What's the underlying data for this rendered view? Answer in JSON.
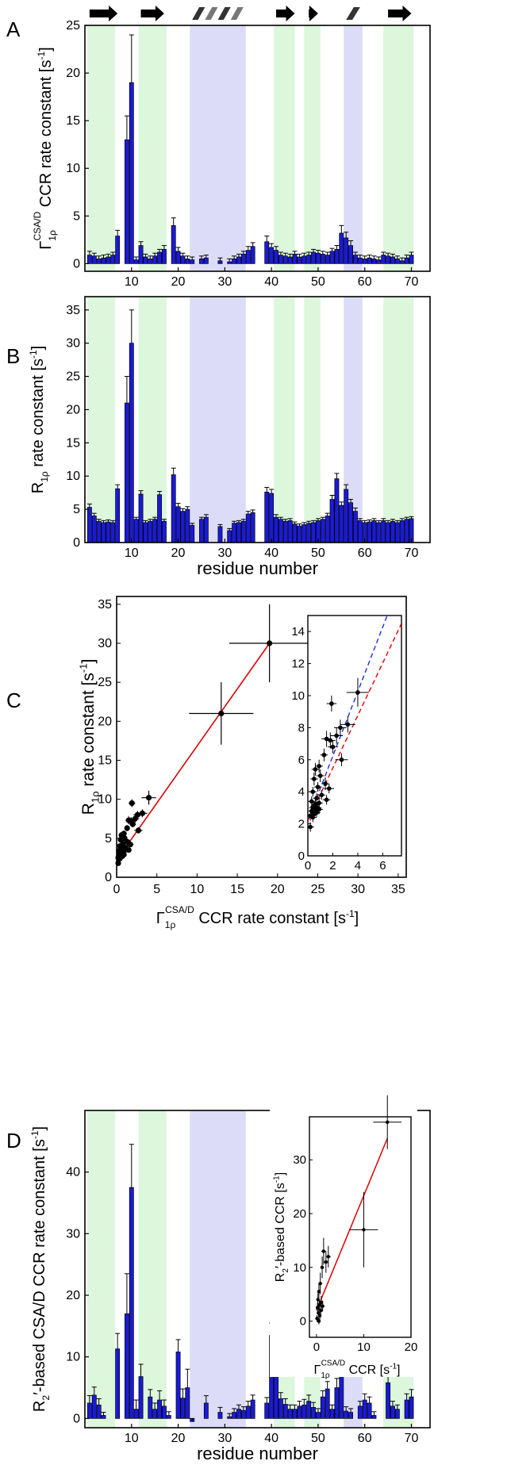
{
  "panel_letters": [
    "A",
    "B",
    "C",
    "D"
  ],
  "secondary_structure": [
    {
      "type": "strand",
      "start": 1,
      "end": 7
    },
    {
      "type": "strand",
      "start": 12,
      "end": 17
    },
    {
      "type": "helix",
      "start": 23,
      "end": 34
    },
    {
      "type": "strand",
      "start": 41,
      "end": 45
    },
    {
      "type": "strand",
      "start": 48,
      "end": 50
    },
    {
      "type": "helix",
      "start": 56,
      "end": 59
    },
    {
      "type": "strand",
      "start": 65,
      "end": 70
    }
  ],
  "shading": {
    "strand_color": "#dcf7dc",
    "helix_color": "#dcdcf8",
    "regions": [
      {
        "type": "strand",
        "start": 0.5,
        "end": 6.5
      },
      {
        "type": "strand",
        "start": 11.5,
        "end": 17.5
      },
      {
        "type": "helix",
        "start": 22.5,
        "end": 34.5
      },
      {
        "type": "strand",
        "start": 40.5,
        "end": 45
      },
      {
        "type": "strand",
        "start": 47,
        "end": 50.5
      },
      {
        "type": "helix",
        "start": 55.5,
        "end": 59.5
      },
      {
        "type": "strand",
        "start": 64,
        "end": 70.5
      }
    ]
  },
  "colors": {
    "bar": "#1a1ad6",
    "fit_line": "#e00000",
    "blue_dashed": "#1a2fd6",
    "red_dashed": "#e00000"
  },
  "chart_data": [
    {
      "panel": "A",
      "type": "bar",
      "ylabel_parts": {
        "base": "Γ",
        "sub": "1ρ",
        "sup": "CSA/D",
        "rest": " CCR rate constant [s",
        "unit_sup": "-1",
        "close": "]"
      },
      "xlim": [
        0,
        74
      ],
      "ylim": [
        -0.8,
        25
      ],
      "xticks": [
        10,
        20,
        30,
        40,
        50,
        60,
        70
      ],
      "yticks": [
        0,
        5,
        10,
        15,
        20,
        25
      ],
      "x": [
        1,
        2,
        3,
        4,
        5,
        6,
        7,
        9,
        10,
        11,
        12,
        13,
        14,
        15,
        16,
        17,
        19,
        20,
        21,
        22,
        23,
        25,
        26,
        29,
        31,
        32,
        33,
        34,
        35,
        36,
        39,
        40,
        41,
        42,
        43,
        44,
        45,
        46,
        47,
        48,
        49,
        50,
        51,
        52,
        53,
        54,
        55,
        56,
        57,
        58,
        59,
        60,
        61,
        62,
        63,
        64,
        65,
        66,
        67,
        68,
        69,
        70
      ],
      "values": [
        0.9,
        0.8,
        0.5,
        0.6,
        0.7,
        0.9,
        2.9,
        13,
        19,
        0.4,
        1.9,
        0.7,
        0.5,
        0.8,
        1.2,
        1.5,
        4.0,
        1.3,
        0.8,
        0.5,
        0.4,
        0.5,
        0.6,
        0.3,
        0.2,
        0.5,
        0.7,
        1.0,
        1.4,
        1.8,
        2.3,
        1.7,
        1.4,
        0.9,
        0.8,
        0.7,
        1.0,
        0.7,
        0.8,
        0.9,
        1.2,
        1.1,
        1.0,
        0.9,
        1.3,
        1.5,
        3.2,
        2.7,
        1.9,
        0.9,
        0.6,
        0.5,
        0.6,
        0.5,
        0.4,
        0.9,
        0.8,
        0.7,
        0.5,
        0.3,
        0.6,
        0.9
      ],
      "errors": [
        0.4,
        0.3,
        0.3,
        0.3,
        0.3,
        0.3,
        0.6,
        2.5,
        5,
        0.3,
        0.4,
        0.3,
        0.3,
        0.3,
        0.3,
        0.4,
        0.8,
        0.4,
        0.3,
        0.3,
        0.3,
        0.3,
        0.3,
        0.3,
        0.3,
        0.3,
        0.3,
        0.3,
        0.4,
        0.4,
        0.6,
        0.4,
        0.4,
        0.3,
        0.3,
        0.3,
        0.3,
        0.3,
        0.3,
        0.3,
        0.3,
        0.3,
        0.3,
        0.3,
        0.3,
        0.4,
        0.8,
        0.6,
        0.5,
        0.3,
        0.3,
        0.3,
        0.3,
        0.3,
        0.3,
        0.3,
        0.3,
        0.3,
        0.3,
        0.3,
        0.3,
        0.3
      ]
    },
    {
      "panel": "B",
      "type": "bar",
      "ylabel_parts": {
        "base": "R",
        "sub": "1ρ",
        "rest": " rate constant [s",
        "unit_sup": "-1",
        "close": "]"
      },
      "xlabel": "residue number",
      "xlim": [
        0,
        74
      ],
      "ylim": [
        0,
        37
      ],
      "xticks": [
        10,
        20,
        30,
        40,
        50,
        60,
        70
      ],
      "yticks": [
        0,
        5,
        10,
        15,
        20,
        25,
        30,
        35
      ],
      "x": [
        1,
        2,
        3,
        4,
        5,
        6,
        7,
        9,
        10,
        11,
        12,
        13,
        14,
        15,
        16,
        17,
        19,
        20,
        21,
        22,
        23,
        25,
        26,
        29,
        31,
        32,
        33,
        34,
        35,
        36,
        39,
        40,
        41,
        42,
        43,
        44,
        45,
        46,
        47,
        48,
        49,
        50,
        51,
        52,
        53,
        54,
        55,
        56,
        57,
        58,
        59,
        60,
        61,
        62,
        63,
        64,
        65,
        66,
        67,
        68,
        69,
        70
      ],
      "values": [
        5.3,
        4.0,
        3.2,
        3.0,
        3.1,
        3.0,
        8.1,
        21,
        30,
        3.5,
        7.3,
        3.0,
        3.2,
        3.5,
        7.2,
        3.2,
        10.2,
        5.4,
        4.7,
        5.0,
        2.6,
        3.5,
        3.8,
        2.4,
        1.8,
        2.9,
        3.0,
        3.2,
        4.3,
        4.5,
        7.6,
        7.4,
        3.8,
        3.5,
        3.2,
        3.3,
        2.8,
        2.5,
        2.7,
        2.9,
        3.0,
        3.3,
        3.5,
        4.0,
        6.5,
        9.6,
        5.6,
        8.0,
        6.0,
        4.7,
        3.3,
        3.0,
        3.1,
        3.3,
        3.0,
        3.3,
        3.0,
        3.2,
        3.0,
        3.3,
        3.5,
        3.6
      ],
      "errors": [
        0.5,
        0.4,
        0.3,
        0.3,
        0.3,
        0.3,
        0.6,
        4,
        5,
        0.3,
        0.5,
        0.3,
        0.3,
        0.3,
        0.5,
        0.3,
        1.0,
        0.5,
        0.4,
        0.4,
        0.3,
        0.3,
        0.4,
        0.3,
        0.3,
        0.3,
        0.3,
        0.3,
        0.4,
        0.4,
        0.7,
        0.6,
        0.4,
        0.3,
        0.3,
        0.3,
        0.3,
        0.3,
        0.3,
        0.3,
        0.3,
        0.3,
        0.3,
        0.4,
        0.6,
        0.8,
        0.5,
        0.7,
        0.5,
        0.5,
        0.3,
        0.3,
        0.3,
        0.3,
        0.3,
        0.3,
        0.3,
        0.3,
        0.3,
        0.3,
        0.3,
        0.3
      ]
    },
    {
      "panel": "C",
      "type": "scatter",
      "xlabel_parts": {
        "base": "Γ",
        "sub": "1ρ",
        "sup": "CSA/D",
        "rest": " CCR rate constant [s",
        "unit_sup": "-1",
        "close": "]"
      },
      "ylabel_parts": {
        "base": "R",
        "sub": "1ρ",
        "rest": " rate constant [s",
        "unit_sup": "-1",
        "close": "]"
      },
      "xlim": [
        0,
        36
      ],
      "ylim": [
        0,
        36
      ],
      "xticks": [
        0,
        5,
        10,
        15,
        20,
        25,
        30,
        35
      ],
      "yticks": [
        0,
        5,
        10,
        15,
        20,
        25,
        30,
        35
      ],
      "fit_line": {
        "x": [
          0,
          19
        ],
        "y": [
          2.2,
          30
        ]
      },
      "points": [
        {
          "x": 19,
          "y": 30,
          "xerr": 5,
          "yerr": 5
        },
        {
          "x": 13,
          "y": 21,
          "xerr": 4,
          "yerr": 4
        },
        {
          "x": 4.0,
          "y": 10.2,
          "xerr": 0.9,
          "yerr": 0.9
        },
        {
          "x": 1.9,
          "y": 9.5,
          "xerr": 0.4,
          "yerr": 0.5
        },
        {
          "x": 3.2,
          "y": 8.2,
          "xerr": 0.6,
          "yerr": 0.5
        },
        {
          "x": 2.6,
          "y": 8.0,
          "xerr": 0.5,
          "yerr": 0.5
        },
        {
          "x": 2.3,
          "y": 7.5,
          "xerr": 0.5,
          "yerr": 0.5
        },
        {
          "x": 1.8,
          "y": 7.2,
          "xerr": 0.4,
          "yerr": 0.5
        },
        {
          "x": 1.5,
          "y": 7.3,
          "xerr": 0.4,
          "yerr": 0.5
        },
        {
          "x": 2.0,
          "y": 6.8,
          "xerr": 0.4,
          "yerr": 0.4
        },
        {
          "x": 1.3,
          "y": 6.3,
          "xerr": 0.3,
          "yerr": 0.4
        },
        {
          "x": 2.7,
          "y": 6.0,
          "xerr": 0.5,
          "yerr": 0.4
        },
        {
          "x": 0.9,
          "y": 5.6,
          "xerr": 0.3,
          "yerr": 0.4
        },
        {
          "x": 0.6,
          "y": 5.4,
          "xerr": 0.3,
          "yerr": 0.4
        },
        {
          "x": 1.0,
          "y": 5.0,
          "xerr": 0.3,
          "yerr": 0.4
        },
        {
          "x": 0.5,
          "y": 4.8,
          "xerr": 0.3,
          "yerr": 0.4
        },
        {
          "x": 1.4,
          "y": 4.5,
          "xerr": 0.3,
          "yerr": 0.4
        },
        {
          "x": 0.8,
          "y": 4.3,
          "xerr": 0.3,
          "yerr": 0.3
        },
        {
          "x": 1.7,
          "y": 4.2,
          "xerr": 0.4,
          "yerr": 0.3
        },
        {
          "x": 0.4,
          "y": 4.0,
          "xerr": 0.3,
          "yerr": 0.3
        },
        {
          "x": 1.1,
          "y": 3.8,
          "xerr": 0.3,
          "yerr": 0.3
        },
        {
          "x": 0.7,
          "y": 3.6,
          "xerr": 0.3,
          "yerr": 0.3
        },
        {
          "x": 1.5,
          "y": 3.5,
          "xerr": 0.3,
          "yerr": 0.3
        },
        {
          "x": 0.3,
          "y": 3.4,
          "xerr": 0.3,
          "yerr": 0.3
        },
        {
          "x": 0.9,
          "y": 3.3,
          "xerr": 0.3,
          "yerr": 0.3
        },
        {
          "x": 0.6,
          "y": 3.2,
          "xerr": 0.3,
          "yerr": 0.3
        },
        {
          "x": 0.5,
          "y": 3.1,
          "xerr": 0.3,
          "yerr": 0.3
        },
        {
          "x": 0.8,
          "y": 3.0,
          "xerr": 0.3,
          "yerr": 0.3
        },
        {
          "x": 0.4,
          "y": 3.0,
          "xerr": 0.3,
          "yerr": 0.3
        },
        {
          "x": 0.6,
          "y": 2.9,
          "xerr": 0.3,
          "yerr": 0.3
        },
        {
          "x": 0.3,
          "y": 2.8,
          "xerr": 0.3,
          "yerr": 0.3
        },
        {
          "x": 0.7,
          "y": 2.7,
          "xerr": 0.3,
          "yerr": 0.3
        },
        {
          "x": 0.5,
          "y": 2.6,
          "xerr": 0.3,
          "yerr": 0.3
        },
        {
          "x": 0.2,
          "y": 2.5,
          "xerr": 0.3,
          "yerr": 0.3
        },
        {
          "x": 0.9,
          "y": 2.9,
          "xerr": 0.3,
          "yerr": 0.3
        },
        {
          "x": 0.4,
          "y": 2.4,
          "xerr": 0.3,
          "yerr": 0.3
        },
        {
          "x": 0.2,
          "y": 1.8,
          "xerr": 0.3,
          "yerr": 0.3
        }
      ],
      "inset": {
        "xlim": [
          0,
          7.5
        ],
        "ylim": [
          0,
          15
        ],
        "xticks": [
          0,
          2,
          4,
          6
        ],
        "yticks": [
          0,
          2,
          4,
          6,
          8,
          10,
          12,
          14
        ],
        "blue_dashed": {
          "x": [
            0,
            7.5
          ],
          "y": [
            2.2,
            17.3
          ]
        },
        "red_dashed": {
          "x": [
            0,
            7.5
          ],
          "y": [
            2.2,
            14.5
          ]
        }
      }
    },
    {
      "panel": "D",
      "type": "bar",
      "ylabel_parts": {
        "base": "R",
        "sub": "2",
        "prime": "′",
        "rest": "-based CSA/D CCR rate constant [s",
        "unit_sup": "-1",
        "close": "]"
      },
      "xlabel": "residue number",
      "xlim": [
        0,
        74
      ],
      "ylim": [
        -1.5,
        50
      ],
      "xticks": [
        10,
        20,
        30,
        40,
        50,
        60,
        70
      ],
      "yticks": [
        0,
        10,
        20,
        30,
        40
      ],
      "x": [
        1,
        2,
        3,
        4,
        7,
        9,
        10,
        11,
        12,
        14,
        15,
        16,
        17,
        18,
        20,
        21,
        22,
        23,
        26,
        29,
        31,
        32,
        33,
        34,
        35,
        36,
        39,
        40,
        41,
        42,
        43,
        44,
        45,
        46,
        47,
        48,
        49,
        50,
        51,
        52,
        53,
        54,
        55,
        56,
        57,
        59,
        60,
        61,
        62,
        65,
        66,
        67,
        69,
        70
      ],
      "values": [
        2.5,
        3.8,
        2.2,
        0.5,
        11.3,
        17,
        37.5,
        1.5,
        6.8,
        3.5,
        1.5,
        3.0,
        2.0,
        0.5,
        10.8,
        3.3,
        5.0,
        -0.5,
        2.5,
        1.0,
        0.3,
        1.0,
        1.5,
        1.3,
        2.0,
        3.0,
        2.5,
        13.5,
        11.2,
        3.2,
        2.3,
        1.5,
        1.5,
        2.0,
        2.2,
        2.8,
        1.8,
        1.0,
        3.5,
        4.8,
        1.5,
        5.0,
        7.3,
        1.2,
        1.0,
        2.0,
        3.0,
        2.5,
        0.5,
        5.8,
        2.0,
        1.5,
        3.0,
        3.5
      ],
      "errors": [
        1.2,
        1.3,
        1.0,
        0.5,
        2.5,
        6.5,
        7.0,
        1.5,
        2.0,
        1.2,
        1.0,
        1.5,
        1.0,
        0.6,
        2.0,
        1.5,
        3.0,
        0.5,
        1.2,
        0.8,
        0.5,
        0.6,
        0.7,
        0.6,
        0.8,
        0.8,
        0.9,
        2.0,
        1.8,
        1.0,
        0.9,
        0.7,
        0.7,
        0.8,
        0.9,
        1.0,
        0.8,
        0.6,
        1.0,
        1.2,
        0.7,
        1.5,
        2.5,
        0.7,
        0.6,
        0.8,
        1.0,
        1.0,
        0.6,
        2.5,
        0.8,
        0.7,
        1.0,
        1.2
      ],
      "inset": {
        "xlim": [
          -1.5,
          20
        ],
        "ylim": [
          -3,
          38
        ],
        "xticks": [
          0,
          10,
          20
        ],
        "yticks": [
          0,
          10,
          20,
          30
        ],
        "ylabel_parts": {
          "base": "R",
          "sub": "2",
          "prime": "′",
          "rest": "-based CCR [s",
          "unit_sup": "-1",
          "close": "]"
        },
        "xlabel_parts": {
          "base": "Γ",
          "sub": "1ρ",
          "sup": "CSA/D",
          "rest": " CCR [s",
          "unit_sup": "-1",
          "close": "]"
        },
        "fit_line": {
          "x": [
            0,
            15
          ],
          "y": [
            2.0,
            34
          ]
        },
        "points": [
          {
            "x": 15,
            "y": 37,
            "xerr": 3,
            "yerr": 5
          },
          {
            "x": 10,
            "y": 17,
            "xerr": 3,
            "yerr": 7
          },
          {
            "x": 1.5,
            "y": 13,
            "xerr": 0.5,
            "yerr": 2.5
          },
          {
            "x": 2.5,
            "y": 12,
            "xerr": 0.5,
            "yerr": 2
          },
          {
            "x": 2.0,
            "y": 11,
            "xerr": 0.5,
            "yerr": 2
          },
          {
            "x": 1.2,
            "y": 10,
            "xerr": 0.4,
            "yerr": 2
          },
          {
            "x": 0.8,
            "y": 7,
            "xerr": 0.4,
            "yerr": 2
          },
          {
            "x": 0.5,
            "y": 5.5,
            "xerr": 0.3,
            "yerr": 1.5
          },
          {
            "x": 0.3,
            "y": 4,
            "xerr": 0.3,
            "yerr": 1.2
          },
          {
            "x": 1.0,
            "y": 3.5,
            "xerr": 0.4,
            "yerr": 1.2
          },
          {
            "x": 0.6,
            "y": 3,
            "xerr": 0.3,
            "yerr": 1.0
          },
          {
            "x": 0.2,
            "y": 2.5,
            "xerr": 0.3,
            "yerr": 1.0
          },
          {
            "x": 0.9,
            "y": 2,
            "xerr": 0.3,
            "yerr": 1.0
          },
          {
            "x": 0.4,
            "y": 1.5,
            "xerr": 0.3,
            "yerr": 0.8
          },
          {
            "x": 0.7,
            "y": 1,
            "xerr": 0.3,
            "yerr": 0.8
          },
          {
            "x": 0.1,
            "y": 0.5,
            "xerr": 0.3,
            "yerr": 0.6
          },
          {
            "x": 1.3,
            "y": 2.8,
            "xerr": 0.4,
            "yerr": 1.0
          },
          {
            "x": 0.5,
            "y": 0,
            "xerr": 0.3,
            "yerr": 0.6
          }
        ]
      }
    }
  ]
}
